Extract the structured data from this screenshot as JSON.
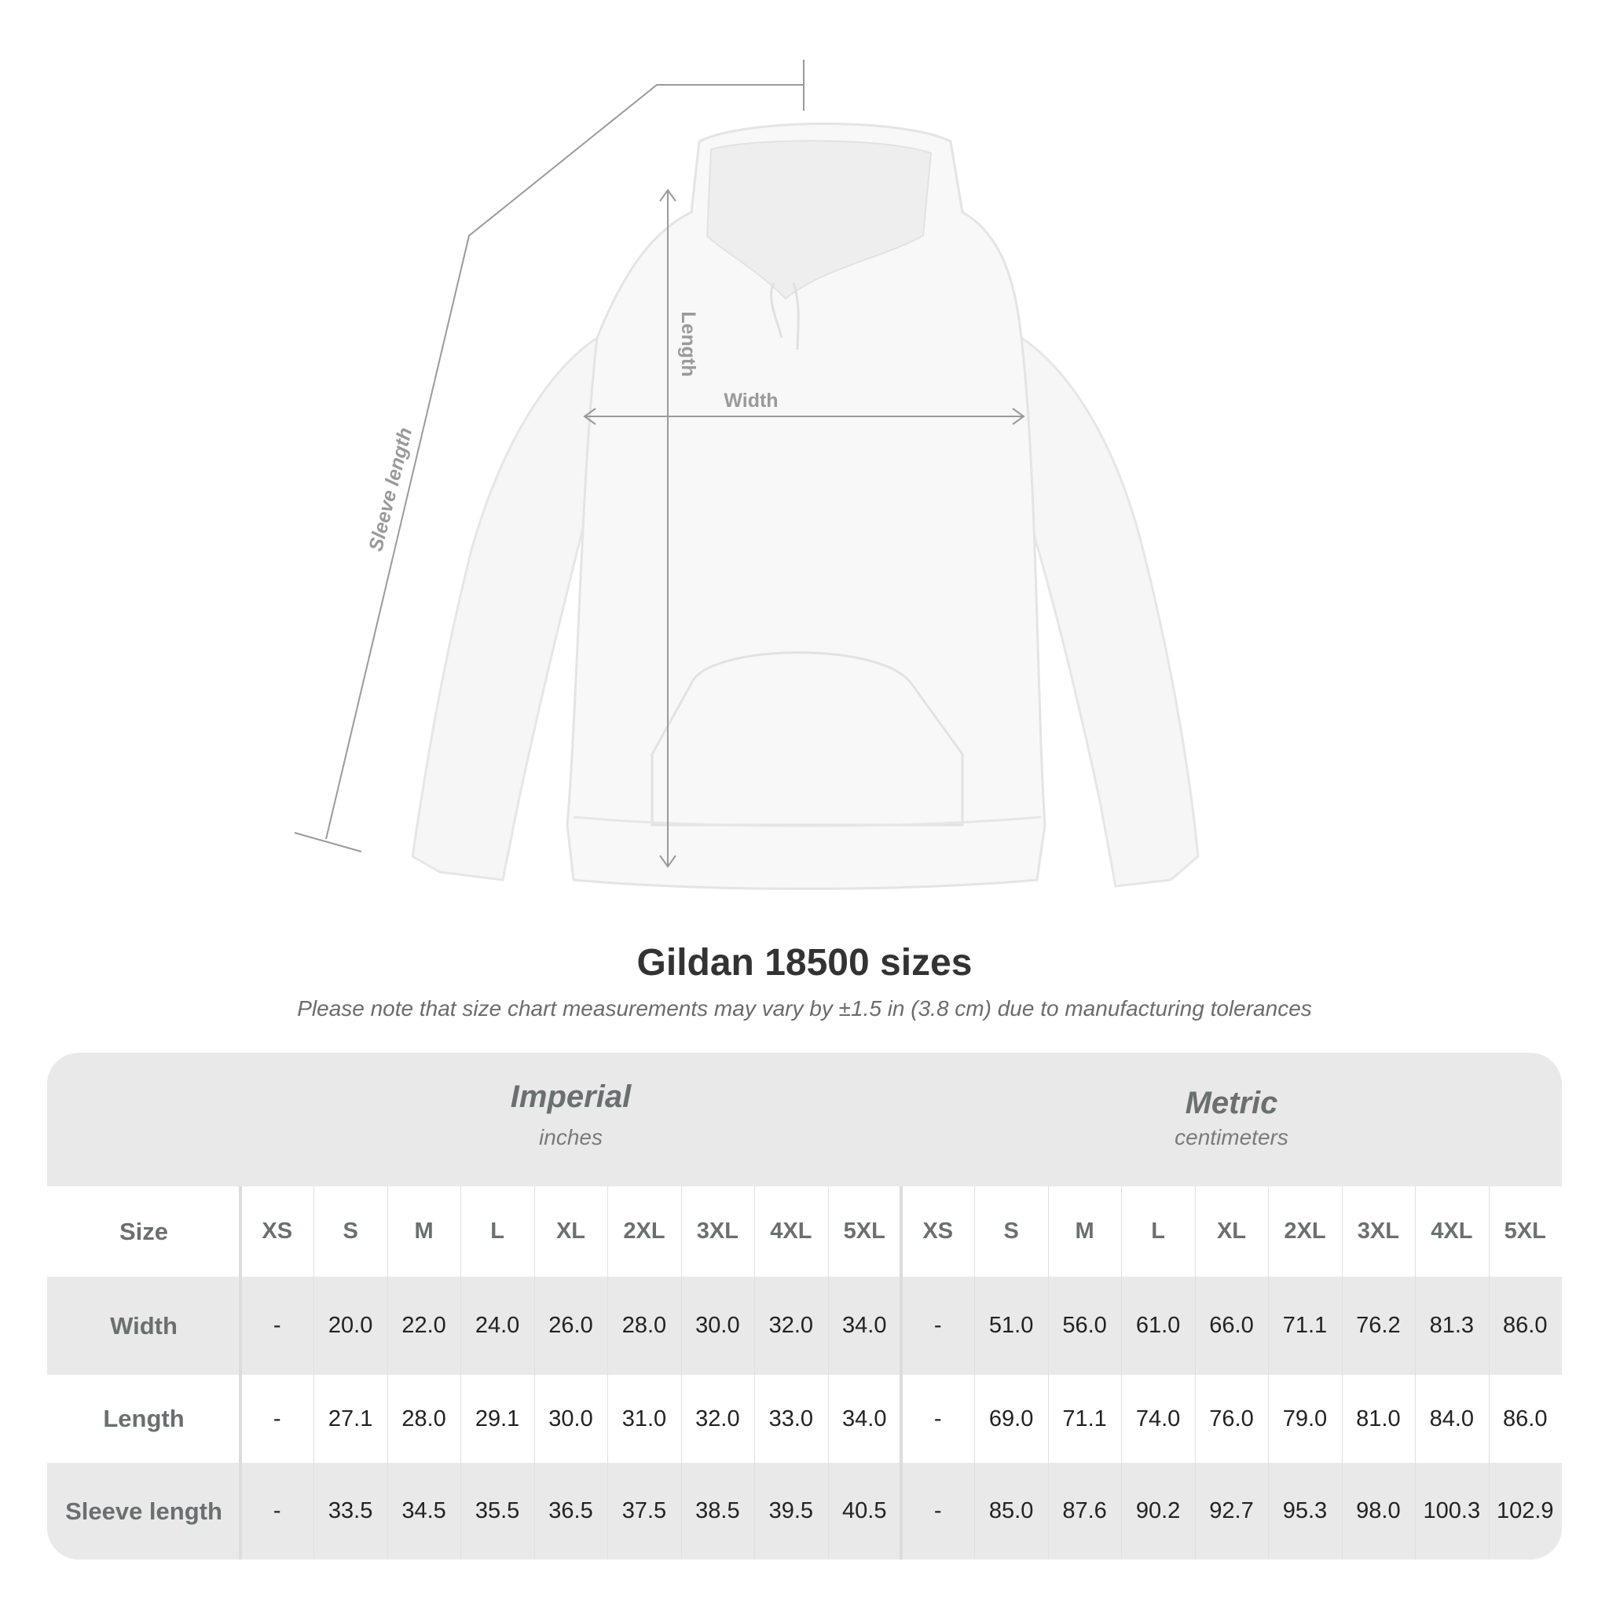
{
  "diagram": {
    "labels": {
      "sleeve": "Sleeve length",
      "length": "Length",
      "width": "Width"
    }
  },
  "title": "Gildan 18500 sizes",
  "subtitle": "Please note that size chart measurements may vary by ±1.5 in (3.8 cm) due to manufacturing tolerances",
  "table": {
    "imperial": {
      "heading": "Imperial",
      "unit": "inches"
    },
    "metric": {
      "heading": "Metric",
      "unit": "centimeters"
    },
    "size_label": "Size",
    "sizes": [
      "XS",
      "S",
      "M",
      "L",
      "XL",
      "2XL",
      "3XL",
      "4XL",
      "5XL"
    ],
    "rows": [
      {
        "label": "Width",
        "imperial": [
          "-",
          "20.0",
          "22.0",
          "24.0",
          "26.0",
          "28.0",
          "30.0",
          "32.0",
          "34.0"
        ],
        "metric": [
          "-",
          "51.0",
          "56.0",
          "61.0",
          "66.0",
          "71.1",
          "76.2",
          "81.3",
          "86.0"
        ]
      },
      {
        "label": "Length",
        "imperial": [
          "-",
          "27.1",
          "28.0",
          "29.1",
          "30.0",
          "31.0",
          "32.0",
          "33.0",
          "34.0"
        ],
        "metric": [
          "-",
          "69.0",
          "71.1",
          "74.0",
          "76.0",
          "79.0",
          "81.0",
          "84.0",
          "86.0"
        ]
      },
      {
        "label": "Sleeve length",
        "imperial": [
          "-",
          "33.5",
          "34.5",
          "35.5",
          "36.5",
          "37.5",
          "38.5",
          "39.5",
          "40.5"
        ],
        "metric": [
          "-",
          "85.0",
          "87.6",
          "90.2",
          "92.7",
          "95.3",
          "98.0",
          "100.3",
          "102.9"
        ]
      }
    ]
  },
  "colors": {
    "band": "#e9e9e9",
    "header_text": "#6a6f70",
    "measure_line": "#9a9a9a"
  }
}
